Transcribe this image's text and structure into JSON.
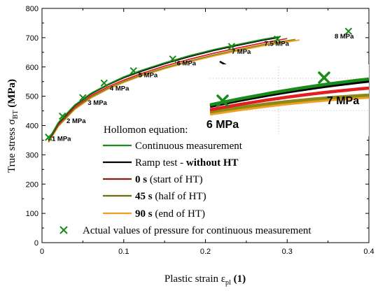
{
  "chart_data": {
    "type": "line",
    "xlabel": "Plastic strain ε",
    "xlabel_sub": "pl",
    "xlabel_unit": " (1)",
    "ylabel": "True stress σ",
    "ylabel_sub": "BT",
    "ylabel_unit": " (MPa)",
    "xlim": [
      0,
      0.4
    ],
    "ylim": [
      0,
      800
    ],
    "xticks": [
      0,
      0.1,
      0.2,
      0.3,
      0.4
    ],
    "xtick_labels": [
      "0",
      "0.1",
      "0.2",
      "0.3",
      "0.4"
    ],
    "yticks": [
      0,
      100,
      200,
      300,
      400,
      500,
      600,
      700,
      800
    ],
    "ytick_labels": [
      "0",
      "100",
      "200",
      "300",
      "400",
      "500",
      "600",
      "700",
      "800"
    ],
    "legend_title": "Hollomon equation:",
    "series": [
      {
        "name": "Continuous measurement",
        "color": "#1a8a1a",
        "x": [
          0.008,
          0.02,
          0.04,
          0.06,
          0.08,
          0.1,
          0.12,
          0.15,
          0.18,
          0.21,
          0.24,
          0.27,
          0.29
        ],
        "y": [
          352,
          410,
          470,
          510,
          540,
          566,
          587,
          614,
          638,
          659,
          677,
          694,
          704
        ]
      },
      {
        "name_parts": [
          "Ramp test - ",
          "without HT"
        ],
        "name_bold": [
          false,
          true
        ],
        "color": "#000000",
        "x": [
          0.008,
          0.02,
          0.04,
          0.06,
          0.08,
          0.1,
          0.12,
          0.15,
          0.18,
          0.21,
          0.24,
          0.27,
          0.29
        ],
        "y": [
          350,
          408,
          468,
          508,
          538,
          563,
          584,
          611,
          635,
          656,
          674,
          691,
          701
        ]
      },
      {
        "name_parts": [
          "0 s",
          " (start of HT)"
        ],
        "name_bold": [
          true,
          false
        ],
        "color": "#e02020",
        "x": [
          0.008,
          0.02,
          0.04,
          0.06,
          0.08,
          0.1,
          0.12,
          0.15,
          0.18,
          0.21,
          0.24,
          0.27,
          0.3
        ],
        "y": [
          347,
          403,
          462,
          502,
          531,
          555,
          576,
          603,
          626,
          647,
          665,
          682,
          697
        ]
      },
      {
        "name_parts": [
          "45 s",
          " (half of HT)"
        ],
        "name_bold": [
          true,
          false
        ],
        "color": "#8a8a18",
        "x": [
          0.008,
          0.02,
          0.04,
          0.06,
          0.08,
          0.1,
          0.12,
          0.15,
          0.18,
          0.21,
          0.24,
          0.27,
          0.31
        ],
        "y": [
          344,
          399,
          458,
          497,
          526,
          550,
          571,
          597,
          620,
          641,
          659,
          676,
          694
        ]
      },
      {
        "name_parts": [
          "90 s",
          " (end of HT)"
        ],
        "name_bold": [
          true,
          false
        ],
        "color": "#f0a020",
        "x": [
          0.008,
          0.02,
          0.04,
          0.06,
          0.08,
          0.1,
          0.12,
          0.15,
          0.18,
          0.21,
          0.24,
          0.27,
          0.315
        ],
        "y": [
          342,
          397,
          455,
          494,
          523,
          547,
          568,
          594,
          617,
          637,
          655,
          672,
          692
        ]
      }
    ],
    "markers": {
      "name": "Actual values of pressure for continuous measurement",
      "color": "#1a8a1a",
      "x": [
        0.008,
        0.025,
        0.05,
        0.076,
        0.112,
        0.16,
        0.232,
        0.288,
        0.375
      ],
      "y": [
        360,
        432,
        495,
        545,
        587,
        627,
        670,
        695,
        722
      ]
    },
    "annotations": [
      {
        "text": "1 MPa",
        "x": 0.012,
        "y": 348
      },
      {
        "text": "2 MPa",
        "x": 0.03,
        "y": 408
      },
      {
        "text": "3 MPa",
        "x": 0.056,
        "y": 470
      },
      {
        "text": "4 MPa",
        "x": 0.083,
        "y": 520
      },
      {
        "text": "5 MPa",
        "x": 0.118,
        "y": 565
      },
      {
        "text": "6 MPa",
        "x": 0.165,
        "y": 605
      },
      {
        "text": "7 MPa",
        "x": 0.232,
        "y": 645
      },
      {
        "text": "7.5 MPa",
        "x": 0.272,
        "y": 672
      },
      {
        "text": "8 MPa",
        "x": 0.358,
        "y": 697
      }
    ],
    "inset": {
      "labels": [
        "6 MPa",
        "7 MPa"
      ]
    },
    "grid": false,
    "legend_position": "lower-center"
  }
}
